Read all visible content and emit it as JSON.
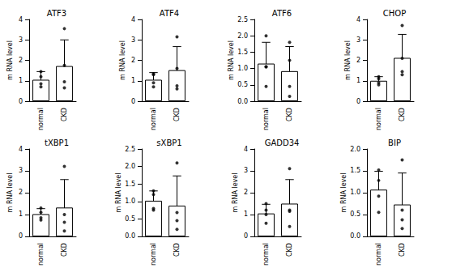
{
  "chart_data": [
    {
      "type": "bar",
      "title": "ATF3",
      "ylabel": "m RNA level",
      "categories": [
        "normal",
        "CKD"
      ],
      "values": [
        1.05,
        1.72
      ],
      "errors": [
        0.4,
        1.28
      ],
      "points": [
        [
          1.45,
          1.2,
          0.85,
          0.7
        ],
        [
          3.55,
          1.75,
          0.95,
          0.65
        ]
      ],
      "color": "#ffffff",
      "ylim": [
        0,
        4
      ],
      "yticks": [
        0,
        1,
        2,
        3,
        4
      ],
      "grid": false
    },
    {
      "type": "bar",
      "title": "ATF4",
      "ylabel": "m RNA level",
      "categories": [
        "normal",
        "CKD"
      ],
      "values": [
        1.05,
        1.52
      ],
      "errors": [
        0.35,
        1.15
      ],
      "points": [
        [
          1.35,
          1.3,
          0.9,
          0.7
        ],
        [
          3.15,
          1.6,
          0.75,
          0.6
        ]
      ],
      "color": "#ffffff",
      "ylim": [
        0,
        4
      ],
      "yticks": [
        0,
        1,
        2,
        3,
        4
      ],
      "grid": false
    },
    {
      "type": "bar",
      "title": "ATF6",
      "ylabel": "m RNA level",
      "categories": [
        "normal",
        "CKD"
      ],
      "values": [
        1.15,
        0.92
      ],
      "errors": [
        0.65,
        0.75
      ],
      "points": [
        [
          2.0,
          1.05,
          1.05,
          0.45
        ],
        [
          1.8,
          1.25,
          0.45,
          0.15
        ]
      ],
      "color": "#ffffff",
      "ylim": [
        0,
        2.5
      ],
      "yticks": [
        {
          "value": 0,
          "label": "0.0"
        },
        0.5,
        {
          "value": 1,
          "label": "1.0"
        },
        1.5,
        {
          "value": 2,
          "label": "2.0"
        },
        2.5
      ],
      "grid": false
    },
    {
      "type": "bar",
      "title": "CHOP",
      "ylabel": "m RNA level",
      "categories": [
        "normal",
        "CKD"
      ],
      "values": [
        1.0,
        2.12
      ],
      "errors": [
        0.2,
        1.15
      ],
      "points": [
        [
          1.2,
          1.1,
          0.9,
          0.8
        ],
        [
          3.7,
          2.1,
          1.45,
          1.3
        ]
      ],
      "color": "#ffffff",
      "ylim": [
        0,
        4
      ],
      "yticks": [
        0,
        1,
        2,
        3,
        4
      ],
      "grid": false
    },
    {
      "type": "bar",
      "title": "tXBP1",
      "ylabel": "m RNA level",
      "categories": [
        "normal",
        "CKD"
      ],
      "values": [
        1.02,
        1.32
      ],
      "errors": [
        0.25,
        1.28
      ],
      "points": [
        [
          1.3,
          1.1,
          0.85,
          0.75
        ],
        [
          3.2,
          1.0,
          0.65,
          0.25
        ]
      ],
      "color": "#ffffff",
      "ylim": [
        0,
        4
      ],
      "yticks": [
        0,
        1,
        2,
        3,
        4
      ],
      "grid": false
    },
    {
      "type": "bar",
      "title": "sXBP1",
      "ylabel": "m RNA level",
      "categories": [
        "normal",
        "CKD"
      ],
      "values": [
        1.02,
        0.88
      ],
      "errors": [
        0.28,
        0.85
      ],
      "points": [
        [
          1.3,
          1.2,
          0.8,
          0.75
        ],
        [
          2.1,
          0.68,
          0.45,
          0.2
        ]
      ],
      "color": "#ffffff",
      "ylim": [
        0,
        2.5
      ],
      "yticks": [
        {
          "value": 0,
          "label": "0.0"
        },
        0.5,
        {
          "value": 1,
          "label": "1.0"
        },
        1.5,
        {
          "value": 2,
          "label": "2.0"
        },
        2.5
      ],
      "grid": false
    },
    {
      "type": "bar",
      "title": "GADD34",
      "ylabel": "m RNA level",
      "categories": [
        "normal",
        "CKD"
      ],
      "values": [
        1.05,
        1.5
      ],
      "errors": [
        0.42,
        1.1
      ],
      "points": [
        [
          1.5,
          1.2,
          1.0,
          0.6
        ],
        [
          3.1,
          1.2,
          1.15,
          0.45
        ]
      ],
      "color": "#ffffff",
      "ylim": [
        0,
        4
      ],
      "yticks": [
        0,
        1,
        2,
        3,
        4
      ],
      "grid": false
    },
    {
      "type": "bar",
      "title": "BIP",
      "ylabel": "m RNA level",
      "categories": [
        "normal",
        "CKD"
      ],
      "values": [
        1.07,
        0.73
      ],
      "errors": [
        0.42,
        0.72
      ],
      "points": [
        [
          1.52,
          1.28,
          0.92,
          0.55
        ],
        [
          1.75,
          0.6,
          0.38,
          0.18
        ]
      ],
      "color": "#ffffff",
      "ylim": [
        0,
        2
      ],
      "yticks": [
        {
          "value": 0,
          "label": "0.0"
        },
        0.5,
        {
          "value": 1,
          "label": "1.0"
        },
        1.5,
        {
          "value": 2,
          "label": "2.0"
        }
      ],
      "grid": false
    }
  ]
}
